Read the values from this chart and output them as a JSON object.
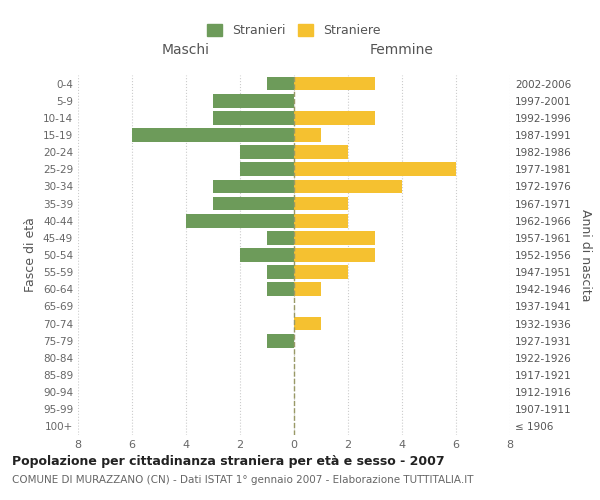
{
  "age_groups": [
    "100+",
    "95-99",
    "90-94",
    "85-89",
    "80-84",
    "75-79",
    "70-74",
    "65-69",
    "60-64",
    "55-59",
    "50-54",
    "45-49",
    "40-44",
    "35-39",
    "30-34",
    "25-29",
    "20-24",
    "15-19",
    "10-14",
    "5-9",
    "0-4"
  ],
  "birth_years": [
    "≤ 1906",
    "1907-1911",
    "1912-1916",
    "1917-1921",
    "1922-1926",
    "1927-1931",
    "1932-1936",
    "1937-1941",
    "1942-1946",
    "1947-1951",
    "1952-1956",
    "1957-1961",
    "1962-1966",
    "1967-1971",
    "1972-1976",
    "1977-1981",
    "1982-1986",
    "1987-1991",
    "1992-1996",
    "1997-2001",
    "2002-2006"
  ],
  "males": [
    0,
    0,
    0,
    0,
    0,
    1,
    0,
    0,
    1,
    1,
    2,
    1,
    4,
    3,
    3,
    2,
    2,
    6,
    3,
    3,
    1
  ],
  "females": [
    0,
    0,
    0,
    0,
    0,
    0,
    1,
    0,
    1,
    2,
    3,
    3,
    2,
    2,
    4,
    6,
    2,
    1,
    3,
    0,
    3
  ],
  "male_color": "#6d9b5a",
  "female_color": "#f5c130",
  "title": "Popolazione per cittadinanza straniera per età e sesso - 2007",
  "subtitle": "COMUNE DI MURAZZANO (CN) - Dati ISTAT 1° gennaio 2007 - Elaborazione TUTTITALIA.IT",
  "ylabel_left": "Fasce di età",
  "ylabel_right": "Anni di nascita",
  "xlabel_left": "Maschi",
  "xlabel_right": "Femmine",
  "legend_male": "Stranieri",
  "legend_female": "Straniere",
  "xlim": 8,
  "background_color": "#ffffff",
  "grid_color": "#cccccc",
  "bar_height": 0.8
}
